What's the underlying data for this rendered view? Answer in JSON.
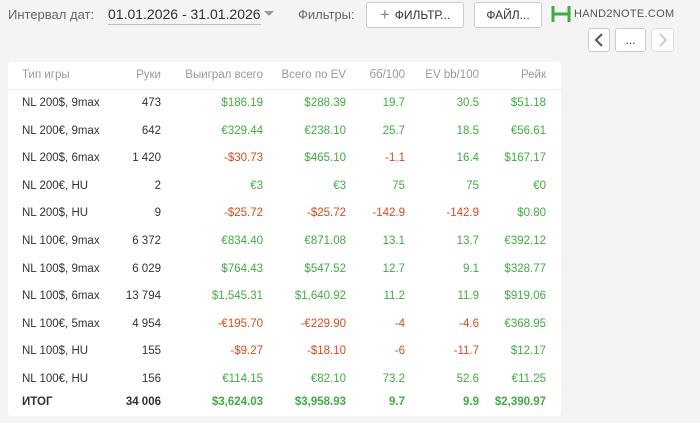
{
  "toolbar": {
    "date_label": "Интервал дат:",
    "date_range": "01.01.2026 - 31.01.2026",
    "filters_label": "Фильтры:",
    "filter_button": "ФИЛЬТР...",
    "file_button": "ФАЙЛ...",
    "logo": "HAND2NOTE.COM",
    "more_button": "..."
  },
  "table": {
    "header": [
      "Тип игры",
      "Руки",
      "Выиграл всего",
      "Всего по EV",
      "бб/100",
      "EV bb/100",
      "Рейк"
    ],
    "rows": [
      [
        "NL 200$, 9max",
        "473",
        "$186.19",
        "$288.39",
        "19.7",
        "30.5",
        "$51.18"
      ],
      [
        "NL 200€, 9max",
        "642",
        "€329.44",
        "€238.10",
        "25.7",
        "18.5",
        "€56.61"
      ],
      [
        "NL 200$, 6max",
        "1 420",
        "-$30.73",
        "$465.10",
        "-1.1",
        "16.4",
        "$167.17"
      ],
      [
        "NL 200€, HU",
        "2",
        "€3",
        "€3",
        "75",
        "75",
        "€0"
      ],
      [
        "NL 200$, HU",
        "9",
        "-$25.72",
        "-$25.72",
        "-142.9",
        "-142.9",
        "$0.80"
      ],
      [
        "NL 100€, 9max",
        "6 372",
        "€834.40",
        "€871.08",
        "13.1",
        "13.7",
        "€392.12"
      ],
      [
        "NL 100$, 9max",
        "6 029",
        "$764.43",
        "$547.52",
        "12.7",
        "9.1",
        "$328.77"
      ],
      [
        "NL 100$, 6max",
        "13 794",
        "$1,545.31",
        "$1,640.92",
        "11.2",
        "11.9",
        "$919.06"
      ],
      [
        "NL 100€, 5max",
        "4 954",
        "-€195.70",
        "-€229.90",
        "-4",
        "-4.6",
        "€368.95"
      ],
      [
        "NL 100$, HU",
        "155",
        "-$9.27",
        "-$18.10",
        "-6",
        "-11.7",
        "$12.17"
      ],
      [
        "NL 100€, HU",
        "156",
        "€114.15",
        "€82.10",
        "73.2",
        "52.6",
        "€11.25"
      ]
    ],
    "total": [
      "ИТОГ",
      "34 006",
      "$3,624.03",
      "$3,958.93",
      "9.7",
      "9.9",
      "$2,390.97"
    ]
  }
}
